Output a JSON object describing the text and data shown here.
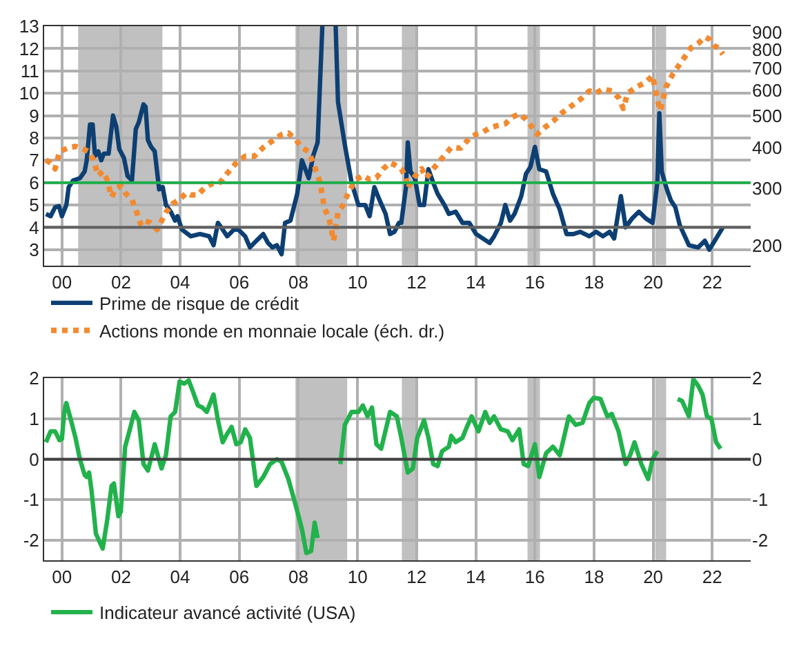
{
  "chart_data": [
    {
      "type": "line",
      "legend": "bottom",
      "grid": true,
      "marker": "none",
      "log": "y2",
      "xlim": [
        1999.4,
        2023.3
      ],
      "xticks": [
        {
          "value": 2000,
          "label": "00"
        },
        {
          "value": 2002,
          "label": "02"
        },
        {
          "value": 2004,
          "label": "04"
        },
        {
          "value": 2006,
          "label": "06"
        },
        {
          "value": 2008,
          "label": "08"
        },
        {
          "value": 2010,
          "label": "10"
        },
        {
          "value": 2012,
          "label": "12"
        },
        {
          "value": 2014,
          "label": "14"
        },
        {
          "value": 2016,
          "label": "16"
        },
        {
          "value": 2018,
          "label": "18"
        },
        {
          "value": 2020,
          "label": "20"
        },
        {
          "value": 2022,
          "label": "22"
        }
      ],
      "ylim": [
        2.3,
        13
      ],
      "yticks": [
        3,
        4,
        5,
        6,
        7,
        8,
        9,
        10,
        11,
        12,
        13
      ],
      "y2lim": [
        174,
        942
      ],
      "y2ticks": [
        200,
        300,
        400,
        500,
        600,
        700,
        800,
        900
      ],
      "bands": [
        {
          "axis": "x",
          "from": 2000.55,
          "to": 2003.4,
          "color": "#c0c0c0"
        },
        {
          "axis": "x",
          "from": 2007.9,
          "to": 2009.65,
          "color": "#c0c0c0"
        },
        {
          "axis": "x",
          "from": 2011.5,
          "to": 2012.05,
          "color": "#c0c0c0"
        },
        {
          "axis": "x",
          "from": 2015.75,
          "to": 2016.17,
          "color": "#c0c0c0"
        },
        {
          "axis": "x",
          "from": 2020.07,
          "to": 2020.44,
          "color": "#c0c0c0"
        }
      ],
      "ref_lines": [
        {
          "axis": "y",
          "value": 6,
          "color": "#1fae4b",
          "line_style": "solid"
        },
        {
          "axis": "y",
          "value": 4,
          "color": "#606060",
          "line_style": "solid"
        }
      ],
      "series": [
        {
          "name": "Prime de risque de crédit",
          "color": "#0d3f73",
          "line_style": "solid",
          "x": [
            1999.46,
            1999.62,
            1999.77,
            1999.9,
            2000.0,
            2000.15,
            2000.23,
            2000.38,
            2000.61,
            2000.77,
            2000.84,
            2000.95,
            2001.04,
            2001.12,
            2001.23,
            2001.33,
            2001.42,
            2001.58,
            2001.73,
            2001.84,
            2001.94,
            2002.1,
            2002.22,
            2002.37,
            2002.5,
            2002.6,
            2002.76,
            2002.83,
            2002.91,
            2003.02,
            2003.14,
            2003.29,
            2003.41,
            2003.52,
            2003.68,
            2003.83,
            2003.91,
            2004.06,
            2004.36,
            2004.67,
            2004.98,
            2005.13,
            2005.28,
            2005.44,
            2005.59,
            2005.82,
            2005.97,
            2006.2,
            2006.36,
            2006.58,
            2006.81,
            2006.97,
            2007.12,
            2007.27,
            2007.43,
            2007.55,
            2007.73,
            2007.96,
            2008.12,
            2008.35,
            2008.5,
            2008.65,
            2008.81,
            2008.95,
            2009.1,
            2009.26,
            2009.34,
            2009.57,
            2009.8,
            2010.03,
            2010.26,
            2010.41,
            2010.57,
            2010.72,
            2010.95,
            2011.1,
            2011.25,
            2011.4,
            2011.48,
            2011.64,
            2011.7,
            2011.79,
            2011.94,
            2012.1,
            2012.25,
            2012.4,
            2012.56,
            2012.71,
            2012.94,
            2013.09,
            2013.32,
            2013.55,
            2013.78,
            2014.01,
            2014.24,
            2014.47,
            2014.62,
            2014.85,
            2015.0,
            2015.16,
            2015.31,
            2015.54,
            2015.7,
            2015.85,
            2016.0,
            2016.15,
            2016.38,
            2016.61,
            2016.84,
            2017.07,
            2017.3,
            2017.53,
            2017.84,
            2018.07,
            2018.3,
            2018.53,
            2018.68,
            2018.91,
            2019.07,
            2019.29,
            2019.52,
            2019.75,
            2019.98,
            2020.14,
            2020.21,
            2020.29,
            2020.44,
            2020.6,
            2020.75,
            2020.9,
            2021.21,
            2021.52,
            2021.75,
            2021.9,
            2022.13,
            2022.36
          ],
          "values": [
            4.6,
            4.5,
            4.9,
            4.95,
            4.5,
            5.0,
            5.8,
            6.1,
            6.2,
            6.5,
            7.0,
            8.6,
            8.6,
            7.2,
            7.4,
            7.0,
            7.3,
            7.3,
            9.0,
            8.5,
            7.5,
            7.1,
            6.3,
            6.1,
            8.4,
            8.7,
            9.5,
            9.4,
            7.9,
            7.6,
            7.4,
            5.7,
            5.8,
            5.0,
            4.7,
            4.3,
            4.5,
            3.9,
            3.6,
            3.7,
            3.6,
            3.2,
            4.2,
            3.9,
            3.6,
            3.9,
            3.9,
            3.6,
            3.1,
            3.4,
            3.7,
            3.3,
            3.1,
            3.2,
            2.8,
            4.2,
            4.3,
            5.5,
            7.0,
            6.2,
            7.2,
            7.8,
            13,
            null,
            null,
            13,
            9.6,
            7.7,
            6.0,
            5.0,
            5.0,
            4.5,
            5.8,
            5.3,
            4.6,
            3.7,
            3.8,
            4.2,
            4.2,
            5.8,
            7.8,
            6.5,
            6.2,
            5.0,
            5.0,
            6.6,
            6.0,
            5.5,
            5.0,
            4.6,
            4.7,
            4.2,
            4.2,
            3.7,
            3.5,
            3.3,
            3.6,
            4.2,
            5.0,
            4.3,
            4.6,
            5.4,
            6.4,
            6.7,
            7.6,
            6.6,
            6.5,
            5.5,
            4.8,
            3.7,
            3.7,
            3.8,
            3.6,
            3.8,
            3.6,
            3.8,
            3.5,
            5.4,
            4.0,
            4.4,
            4.7,
            4.4,
            4.2,
            6.0,
            9.1,
            6.5,
            5.8,
            5.2,
            4.9,
            4.1,
            3.2,
            3.1,
            3.4,
            3.0,
            3.5,
            4.0
          ]
        },
        {
          "name": "Actions monde en monnaie locale (éch. dr.)",
          "color": "#f28a30",
          "axis": "y2",
          "line_style": "dotted",
          "x": [
            1999.46,
            1999.62,
            1999.77,
            1999.92,
            2000.23,
            2000.46,
            2000.61,
            2000.77,
            2000.92,
            2001.07,
            2001.23,
            2001.38,
            2001.53,
            2001.68,
            2001.84,
            2001.99,
            2002.14,
            2002.37,
            2002.53,
            2002.68,
            2002.83,
            2002.99,
            2003.22,
            2003.37,
            2003.52,
            2003.75,
            2003.98,
            2004.21,
            2004.36,
            2004.59,
            2004.82,
            2005.05,
            2005.36,
            2005.59,
            2005.9,
            2006.2,
            2006.51,
            2006.81,
            2007.12,
            2007.43,
            2007.66,
            2007.89,
            2008.12,
            2008.35,
            2008.5,
            2008.73,
            2008.88,
            2009.04,
            2009.19,
            2009.34,
            2009.5,
            2009.72,
            2009.95,
            2010.18,
            2010.41,
            2010.64,
            2010.87,
            2011.1,
            2011.25,
            2011.48,
            2011.64,
            2011.7,
            2011.86,
            2012.02,
            2012.17,
            2012.33,
            2012.56,
            2012.86,
            2013.17,
            2013.48,
            2013.78,
            2014.01,
            2014.24,
            2014.47,
            2014.7,
            2015.0,
            2015.24,
            2015.47,
            2015.7,
            2015.93,
            2016.08,
            2016.31,
            2016.61,
            2016.92,
            2017.23,
            2017.53,
            2017.84,
            2018.07,
            2018.3,
            2018.6,
            2018.83,
            2018.99,
            2019.14,
            2019.45,
            2019.75,
            2019.98,
            2020.14,
            2020.24,
            2020.44,
            2020.67,
            2020.98,
            2021.28,
            2021.52,
            2021.75,
            2021.9,
            2022.05,
            2022.2,
            2022.36
          ],
          "values": [
            366,
            359,
            344,
            388,
            400,
            403,
            398,
            394,
            388,
            366,
            328,
            338,
            319,
            282,
            300,
            305,
            290,
            277,
            253,
            231,
            238,
            235,
            224,
            238,
            253,
            269,
            277,
            290,
            286,
            286,
            300,
            309,
            313,
            333,
            359,
            376,
            376,
            400,
            419,
            438,
            443,
            425,
            400,
            388,
            359,
            313,
            261,
            242,
            207,
            253,
            265,
            295,
            319,
            328,
            319,
            323,
            344,
            359,
            354,
            344,
            323,
            300,
            319,
            333,
            344,
            323,
            344,
            371,
            400,
            398,
            426,
            439,
            446,
            459,
            466,
            473,
            496,
            507,
            488,
            459,
            439,
            459,
            481,
            511,
            536,
            561,
            596,
            587,
            605,
            596,
            569,
            527,
            587,
            614,
            634,
            664,
            561,
            519,
            614,
            673,
            738,
            809,
            834,
            873,
            860,
            822,
            809,
            773
          ]
        }
      ]
    },
    {
      "type": "line",
      "legend": "bottom",
      "grid": true,
      "marker": "none",
      "xlim": [
        1999.4,
        2023.3
      ],
      "xticks": [
        {
          "value": 2000,
          "label": "00"
        },
        {
          "value": 2002,
          "label": "02"
        },
        {
          "value": 2004,
          "label": "04"
        },
        {
          "value": 2006,
          "label": "06"
        },
        {
          "value": 2008,
          "label": "08"
        },
        {
          "value": 2010,
          "label": "10"
        },
        {
          "value": 2012,
          "label": "12"
        },
        {
          "value": 2014,
          "label": "14"
        },
        {
          "value": 2016,
          "label": "16"
        },
        {
          "value": 2018,
          "label": "18"
        },
        {
          "value": 2020,
          "label": "20"
        },
        {
          "value": 2022,
          "label": "22"
        }
      ],
      "ylim": [
        -2.5,
        2
      ],
      "yticks": [
        -2,
        -1,
        0,
        1,
        2
      ],
      "y2lim": [
        -2.5,
        2
      ],
      "y2ticks": [
        -2,
        -1,
        0,
        1,
        2
      ],
      "bands": [
        {
          "axis": "x",
          "from": 2007.9,
          "to": 2009.65,
          "color": "#c0c0c0"
        },
        {
          "axis": "x",
          "from": 2011.5,
          "to": 2012.05,
          "color": "#c0c0c0"
        },
        {
          "axis": "x",
          "from": 2015.75,
          "to": 2016.17,
          "color": "#c0c0c0"
        },
        {
          "axis": "x",
          "from": 2020.07,
          "to": 2020.44,
          "color": "#c0c0c0"
        }
      ],
      "ref_lines": [
        {
          "axis": "y",
          "value": 0,
          "color": "#404040",
          "line_style": "solid"
        }
      ],
      "series": [
        {
          "name": "Indicateur avancé activité (USA)",
          "color": "#22b24c",
          "line_style": "solid",
          "x": [
            1999.46,
            1999.62,
            1999.77,
            1999.92,
            2000.0,
            2000.08,
            2000.15,
            2000.31,
            2000.46,
            2000.61,
            2000.77,
            2000.84,
            2000.92,
            2001.0,
            2001.15,
            2001.38,
            2001.53,
            2001.68,
            2001.76,
            2001.91,
            2001.99,
            2002.14,
            2002.3,
            2002.45,
            2002.6,
            2002.76,
            2002.91,
            2003.14,
            2003.37,
            2003.52,
            2003.68,
            2003.83,
            2003.98,
            2004.14,
            2004.29,
            2004.44,
            2004.6,
            2004.75,
            2004.9,
            2005.13,
            2005.28,
            2005.44,
            2005.59,
            2005.74,
            2005.9,
            2006.05,
            2006.2,
            2006.36,
            2006.58,
            2006.81,
            2007.04,
            2007.27,
            2007.43,
            2007.66,
            2007.89,
            2008.12,
            2008.27,
            2008.43,
            2008.55,
            2008.65,
            2008.76,
            2008.95,
            2009.1,
            2009.26,
            2009.42,
            2009.57,
            2009.8,
            2010.03,
            2010.18,
            2010.34,
            2010.49,
            2010.64,
            2010.8,
            2011.1,
            2011.33,
            2011.48,
            2011.7,
            2011.87,
            2012.02,
            2012.25,
            2012.4,
            2012.56,
            2012.71,
            2012.86,
            2013.09,
            2013.17,
            2013.32,
            2013.55,
            2013.7,
            2013.86,
            2014.09,
            2014.32,
            2014.47,
            2014.62,
            2014.85,
            2015.08,
            2015.24,
            2015.47,
            2015.62,
            2015.77,
            2016.0,
            2016.15,
            2016.38,
            2016.61,
            2016.84,
            2017.15,
            2017.38,
            2017.61,
            2017.84,
            2017.99,
            2018.22,
            2018.45,
            2018.6,
            2018.83,
            2019.07,
            2019.22,
            2019.37,
            2019.6,
            2019.83,
            2019.98,
            2020.14,
            2020.21,
            2020.3,
            2020.4,
            2020.47,
            2020.6,
            2020.68,
            2020.75,
            2020.83,
            2020.98,
            2021.21,
            2021.36,
            2021.52,
            2021.67,
            2021.82,
            2021.97,
            2022.13,
            2022.28
          ],
          "values": [
            0.42,
            0.69,
            0.69,
            0.47,
            0.5,
            1.17,
            1.39,
            0.96,
            0.53,
            0.0,
            -0.39,
            -0.44,
            -0.33,
            -0.76,
            -1.84,
            -2.21,
            -1.52,
            -0.66,
            -0.6,
            -1.41,
            -1.3,
            0.31,
            0.74,
            1.17,
            0.96,
            -0.12,
            -0.28,
            0.37,
            -0.23,
            0.1,
            1.06,
            1.17,
            1.92,
            1.87,
            1.95,
            1.66,
            1.33,
            1.28,
            1.17,
            1.6,
            0.96,
            0.42,
            0.63,
            0.8,
            0.37,
            0.42,
            0.74,
            0.53,
            -0.66,
            -0.44,
            -0.12,
            0.0,
            -0.06,
            -0.49,
            -1.09,
            -1.73,
            -2.32,
            -2.27,
            -1.57,
            -1.95,
            null,
            null,
            null,
            null,
            -0.12,
            0.85,
            1.17,
            1.17,
            1.33,
            1.06,
            1.28,
            0.37,
            0.26,
            1.17,
            1.06,
            0.53,
            -0.33,
            -0.23,
            0.53,
            0.96,
            0.53,
            -0.12,
            -0.17,
            0.2,
            0.31,
            0.58,
            0.42,
            0.53,
            0.8,
            1.06,
            0.69,
            1.17,
            0.9,
            1.06,
            0.74,
            0.69,
            0.47,
            0.74,
            -0.12,
            -0.17,
            0.37,
            -0.44,
            0.15,
            0.31,
            0.1,
            1.06,
            0.85,
            0.9,
            1.39,
            1.52,
            1.49,
            1.06,
            1.12,
            0.69,
            -0.12,
            0.1,
            0.42,
            -0.12,
            -0.49,
            0.0,
            0.2,
            null,
            null,
            null,
            null,
            null,
            null,
            null,
            1.49,
            1.44,
            1.06,
            1.98,
            1.82,
            1.6,
            1.06,
            1.0,
            0.42,
            0.26
          ]
        }
      ]
    }
  ]
}
